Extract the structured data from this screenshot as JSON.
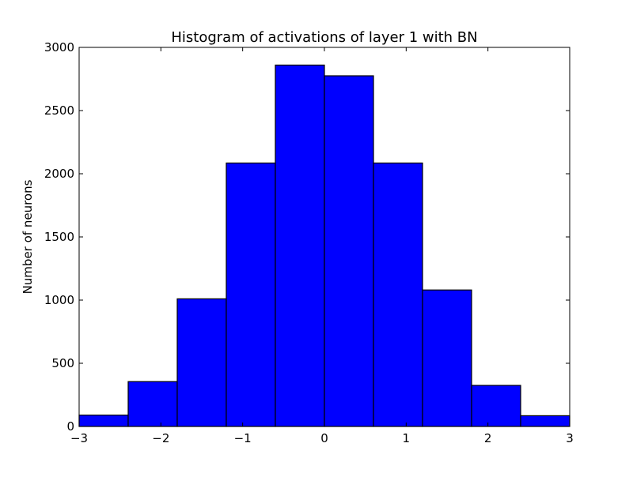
{
  "chart_data": {
    "type": "bar",
    "title": "Histogram of activations of layer 1  with BN",
    "xlabel": "",
    "ylabel": "Number of neurons",
    "xlim": [
      -3,
      3
    ],
    "ylim": [
      0,
      3000
    ],
    "bin_edges": [
      -3,
      -2.4,
      -1.8,
      -1.2,
      -0.6,
      0,
      0.6,
      1.2,
      1.8,
      2.4,
      3
    ],
    "values": [
      90,
      355,
      1010,
      2085,
      2860,
      2775,
      2085,
      1080,
      325,
      85
    ],
    "x_ticks": [
      -3,
      -2,
      -1,
      0,
      1,
      2,
      3
    ],
    "x_tick_labels": [
      "−3",
      "−2",
      "−1",
      "0",
      "1",
      "2",
      "3"
    ],
    "y_ticks": [
      0,
      500,
      1000,
      1500,
      2000,
      2500,
      3000
    ],
    "y_tick_labels": [
      "0",
      "500",
      "1000",
      "1500",
      "2000",
      "2500",
      "3000"
    ],
    "bar_color": "#0000ff",
    "edge_color": "#000000",
    "grid": false,
    "legend": "none"
  }
}
